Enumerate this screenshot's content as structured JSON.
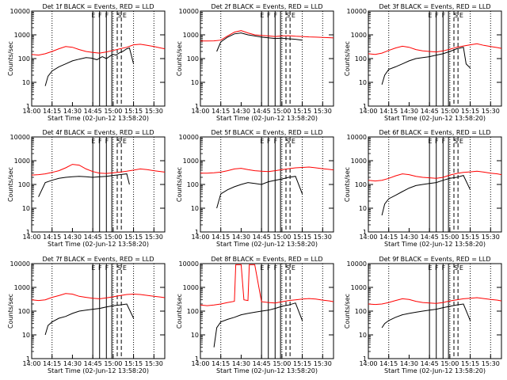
{
  "figure": {
    "panels": [
      {
        "title": "Det 1f BLACK = Events, RED = LLD"
      },
      {
        "title": "Det 2f BLACK = Events, RED = LLD"
      },
      {
        "title": "Det 3f BLACK = Events, RED = LLD"
      },
      {
        "title": "Det 4f BLACK = Events, RED = LLD"
      },
      {
        "title": "Det 5f BLACK = Events, RED = LLD"
      },
      {
        "title": "Det 6f BLACK = Events, RED = LLD"
      },
      {
        "title": "Det 7f BLACK = Events, RED = LLD"
      },
      {
        "title": "Det 8f BLACK = Events, RED = LLD"
      },
      {
        "title": "Det 9f BLACK = Events, RED = LLD"
      }
    ],
    "xlabel": "Start Time (02-Jun-12 13:58:20)",
    "ylabel": "Counts/sec",
    "xtick_labels": [
      "14:00",
      "14:15",
      "14:30",
      "14:45",
      "15:00",
      "15:15",
      "15:30"
    ],
    "ytick_labels": [
      "1",
      "10",
      "100",
      "1000",
      "10000"
    ],
    "marker_labels": [
      "E",
      "F",
      "F",
      "S",
      "E"
    ],
    "colors": {
      "events": "#000000",
      "lld": "#ff0000",
      "axes": "#000000",
      "background": "#ffffff"
    }
  },
  "chart_data": [
    {
      "type": "line",
      "title": "Det 1f BLACK = Events, RED = LLD",
      "xlabel": "Start Time (02-Jun-12 13:58:20)",
      "ylabel": "Counts/sec",
      "yscale": "log",
      "xlim": [
        "14:00",
        "15:38"
      ],
      "ylim": [
        1,
        10000
      ],
      "series": [
        {
          "name": "BLACK = Events",
          "color": "#000000",
          "x": [
            "14:10",
            "14:12",
            "14:15",
            "14:20",
            "14:25",
            "14:30",
            "14:35",
            "14:40",
            "14:44",
            "14:48",
            "14:52",
            "14:55",
            "14:58",
            "15:00",
            "15:02",
            "15:05",
            "15:07",
            "15:10",
            "15:12",
            "15:15"
          ],
          "y": [
            7,
            18,
            30,
            45,
            60,
            80,
            95,
            110,
            105,
            90,
            120,
            100,
            130,
            150,
            140,
            180,
            200,
            260,
            280,
            60
          ]
        },
        {
          "name": "RED = LLD",
          "color": "#ff0000",
          "x": [
            "14:00",
            "14:05",
            "14:10",
            "14:15",
            "14:20",
            "14:25",
            "14:30",
            "14:35",
            "14:40",
            "14:45",
            "14:50",
            "14:55",
            "15:00",
            "15:05",
            "15:10",
            "15:15",
            "15:20",
            "15:25",
            "15:30",
            "15:35",
            "15:38"
          ],
          "y": [
            150,
            140,
            160,
            200,
            260,
            320,
            300,
            240,
            200,
            180,
            170,
            190,
            220,
            260,
            300,
            380,
            400,
            360,
            320,
            280,
            260
          ]
        }
      ]
    },
    {
      "type": "line",
      "title": "Det 2f BLACK = Events, RED = LLD",
      "xlabel": "Start Time (02-Jun-12 13:58:20)",
      "ylabel": "Counts/sec",
      "yscale": "log",
      "xlim": [
        "14:00",
        "15:38"
      ],
      "ylim": [
        1,
        10000
      ],
      "series": [
        {
          "name": "BLACK = Events",
          "color": "#000000",
          "x": [
            "14:12",
            "14:15",
            "14:20",
            "14:25",
            "14:30",
            "14:35",
            "14:40",
            "14:45",
            "14:50",
            "14:55",
            "15:00",
            "15:05",
            "15:10",
            "15:15"
          ],
          "y": [
            200,
            500,
            800,
            1100,
            1200,
            1000,
            900,
            800,
            750,
            700,
            720,
            680,
            650,
            600
          ]
        },
        {
          "name": "RED = LLD",
          "color": "#ff0000",
          "x": [
            "14:00",
            "14:05",
            "14:10",
            "14:15",
            "14:20",
            "14:25",
            "14:30",
            "14:35",
            "14:40",
            "14:45",
            "14:50",
            "14:55",
            "15:00",
            "15:05",
            "15:10",
            "15:15",
            "15:20",
            "15:25",
            "15:30",
            "15:35",
            "15:38"
          ],
          "y": [
            550,
            550,
            560,
            600,
            900,
            1300,
            1500,
            1200,
            1000,
            950,
            900,
            850,
            900,
            920,
            880,
            850,
            820,
            800,
            780,
            760,
            740
          ]
        }
      ]
    },
    {
      "type": "line",
      "title": "Det 3f BLACK = Events, RED = LLD",
      "xlabel": "Start Time (02-Jun-12 13:58:20)",
      "ylabel": "Counts/sec",
      "yscale": "log",
      "xlim": [
        "14:00",
        "15:38"
      ],
      "ylim": [
        1,
        10000
      ],
      "series": [
        {
          "name": "BLACK = Events",
          "color": "#000000",
          "x": [
            "14:10",
            "14:12",
            "14:15",
            "14:20",
            "14:25",
            "14:30",
            "14:35",
            "14:40",
            "14:45",
            "14:50",
            "14:55",
            "15:00",
            "15:05",
            "15:10",
            "15:12",
            "15:15"
          ],
          "y": [
            8,
            20,
            35,
            45,
            60,
            80,
            100,
            110,
            120,
            140,
            160,
            200,
            260,
            300,
            60,
            40
          ]
        },
        {
          "name": "RED = LLD",
          "color": "#ff0000",
          "x": [
            "14:00",
            "14:05",
            "14:10",
            "14:15",
            "14:20",
            "14:25",
            "14:30",
            "14:35",
            "14:40",
            "14:45",
            "14:50",
            "14:55",
            "15:00",
            "15:05",
            "15:10",
            "15:15",
            "15:20",
            "15:25",
            "15:30",
            "15:35",
            "15:38"
          ],
          "y": [
            160,
            150,
            170,
            220,
            280,
            330,
            300,
            240,
            210,
            200,
            190,
            210,
            250,
            300,
            340,
            380,
            420,
            360,
            320,
            290,
            270
          ]
        }
      ]
    },
    {
      "type": "line",
      "title": "Det 4f BLACK = Events, RED = LLD",
      "xlabel": "Start Time (02-Jun-12 13:58:20)",
      "ylabel": "Counts/sec",
      "yscale": "log",
      "xlim": [
        "14:00",
        "15:38"
      ],
      "ylim": [
        1,
        10000
      ],
      "series": [
        {
          "name": "BLACK = Events",
          "color": "#000000",
          "x": [
            "14:05",
            "14:10",
            "14:15",
            "14:20",
            "14:25",
            "14:30",
            "14:35",
            "14:40",
            "14:45",
            "14:50",
            "14:55",
            "15:00",
            "15:05",
            "15:10",
            "15:12"
          ],
          "y": [
            30,
            120,
            150,
            180,
            200,
            210,
            220,
            210,
            200,
            210,
            220,
            240,
            260,
            280,
            100
          ]
        },
        {
          "name": "RED = LLD",
          "color": "#ff0000",
          "x": [
            "14:00",
            "14:05",
            "14:10",
            "14:15",
            "14:20",
            "14:25",
            "14:30",
            "14:35",
            "14:40",
            "14:45",
            "14:50",
            "14:55",
            "15:00",
            "15:05",
            "15:10",
            "15:15",
            "15:20",
            "15:25",
            "15:30",
            "15:35",
            "15:38"
          ],
          "y": [
            250,
            260,
            280,
            320,
            380,
            500,
            700,
            650,
            450,
            350,
            300,
            290,
            310,
            330,
            360,
            400,
            450,
            420,
            380,
            350,
            330
          ]
        }
      ]
    },
    {
      "type": "line",
      "title": "Det 5f BLACK = Events, RED = LLD",
      "xlabel": "Start Time (02-Jun-12 13:58:20)",
      "ylabel": "Counts/sec",
      "yscale": "log",
      "xlim": [
        "14:00",
        "15:38"
      ],
      "ylim": [
        1,
        10000
      ],
      "series": [
        {
          "name": "BLACK = Events",
          "color": "#000000",
          "x": [
            "14:12",
            "14:15",
            "14:20",
            "14:25",
            "14:30",
            "14:35",
            "14:40",
            "14:45",
            "14:50",
            "14:55",
            "15:00",
            "15:05",
            "15:10",
            "15:15"
          ],
          "y": [
            10,
            40,
            60,
            80,
            100,
            120,
            110,
            100,
            130,
            150,
            170,
            200,
            220,
            40
          ]
        },
        {
          "name": "RED = LLD",
          "color": "#ff0000",
          "x": [
            "14:00",
            "14:05",
            "14:10",
            "14:15",
            "14:20",
            "14:25",
            "14:30",
            "14:35",
            "14:40",
            "14:45",
            "14:50",
            "14:55",
            "15:00",
            "15:05",
            "15:10",
            "15:15",
            "15:20",
            "15:25",
            "15:30",
            "15:35",
            "15:38"
          ],
          "y": [
            300,
            300,
            310,
            330,
            380,
            450,
            480,
            420,
            380,
            360,
            350,
            380,
            420,
            460,
            500,
            520,
            540,
            500,
            460,
            430,
            410
          ]
        }
      ]
    },
    {
      "type": "line",
      "title": "Det 6f BLACK = Events, RED = LLD",
      "xlabel": "Start Time (02-Jun-12 13:58:20)",
      "ylabel": "Counts/sec",
      "yscale": "log",
      "xlim": [
        "14:00",
        "15:38"
      ],
      "ylim": [
        1,
        10000
      ],
      "series": [
        {
          "name": "BLACK = Events",
          "color": "#000000",
          "x": [
            "14:10",
            "14:12",
            "14:15",
            "14:20",
            "14:25",
            "14:30",
            "14:35",
            "14:40",
            "14:45",
            "14:50",
            "14:55",
            "15:00",
            "15:05",
            "15:10",
            "15:15"
          ],
          "y": [
            5,
            15,
            25,
            35,
            50,
            70,
            90,
            100,
            110,
            120,
            150,
            180,
            200,
            240,
            60
          ]
        },
        {
          "name": "RED = LLD",
          "color": "#ff0000",
          "x": [
            "14:00",
            "14:05",
            "14:10",
            "14:15",
            "14:20",
            "14:25",
            "14:30",
            "14:35",
            "14:40",
            "14:45",
            "14:50",
            "14:55",
            "15:00",
            "15:05",
            "15:10",
            "15:15",
            "15:20",
            "15:25",
            "15:30",
            "15:35",
            "15:38"
          ],
          "y": [
            150,
            140,
            150,
            180,
            230,
            280,
            260,
            220,
            200,
            190,
            180,
            200,
            250,
            290,
            320,
            340,
            360,
            330,
            300,
            280,
            260
          ]
        }
      ]
    },
    {
      "type": "line",
      "title": "Det 7f BLACK = Events, RED = LLD",
      "xlabel": "Start Time (02-Jun-12 13:58:20)",
      "ylabel": "Counts/sec",
      "yscale": "log",
      "xlim": [
        "14:00",
        "15:38"
      ],
      "ylim": [
        1,
        10000
      ],
      "series": [
        {
          "name": "BLACK = Events",
          "color": "#000000",
          "x": [
            "14:10",
            "14:12",
            "14:15",
            "14:20",
            "14:25",
            "14:30",
            "14:35",
            "14:40",
            "14:45",
            "14:50",
            "14:55",
            "15:00",
            "15:05",
            "15:10",
            "15:15"
          ],
          "y": [
            10,
            25,
            35,
            50,
            60,
            80,
            100,
            110,
            120,
            130,
            150,
            170,
            180,
            200,
            50
          ]
        },
        {
          "name": "RED = LLD",
          "color": "#ff0000",
          "x": [
            "14:00",
            "14:05",
            "14:10",
            "14:15",
            "14:20",
            "14:25",
            "14:30",
            "14:35",
            "14:40",
            "14:45",
            "14:50",
            "14:55",
            "15:00",
            "15:05",
            "15:10",
            "15:15",
            "15:20",
            "15:25",
            "15:30",
            "15:35",
            "15:38"
          ],
          "y": [
            300,
            280,
            300,
            380,
            450,
            550,
            520,
            420,
            380,
            350,
            330,
            360,
            400,
            450,
            500,
            520,
            500,
            460,
            420,
            390,
            370
          ]
        }
      ]
    },
    {
      "type": "line",
      "title": "Det 8f BLACK = Events, RED = LLD",
      "xlabel": "Start Time (02-Jun-12 13:58:20)",
      "ylabel": "Counts/sec",
      "yscale": "log",
      "xlim": [
        "14:00",
        "15:38"
      ],
      "ylim": [
        1,
        10000
      ],
      "series": [
        {
          "name": "BLACK = Events",
          "color": "#000000",
          "x": [
            "14:10",
            "14:12",
            "14:15",
            "14:20",
            "14:25",
            "14:30",
            "14:35",
            "14:40",
            "14:45",
            "14:50",
            "14:55",
            "15:00",
            "15:05",
            "15:10",
            "15:15"
          ],
          "y": [
            3,
            20,
            35,
            45,
            55,
            70,
            80,
            90,
            100,
            110,
            130,
            160,
            180,
            220,
            40
          ]
        },
        {
          "name": "RED = LLD",
          "color": "#ff0000",
          "x": [
            "14:00",
            "14:05",
            "14:10",
            "14:15",
            "14:20",
            "14:25",
            "14:26",
            "14:30",
            "14:32",
            "14:35",
            "14:36",
            "14:40",
            "14:45",
            "14:50",
            "14:55",
            "15:00",
            "15:05",
            "15:10",
            "15:15",
            "15:20",
            "15:25",
            "15:30",
            "15:35",
            "15:38"
          ],
          "y": [
            180,
            170,
            180,
            200,
            230,
            260,
            9000,
            9000,
            300,
            280,
            9000,
            9000,
            250,
            230,
            220,
            250,
            280,
            300,
            320,
            340,
            320,
            290,
            270,
            250
          ]
        }
      ]
    },
    {
      "type": "line",
      "title": "Det 9f BLACK = Events, RED = LLD",
      "xlabel": "Start Time (02-Jun-12 13:58:20)",
      "ylabel": "Counts/sec",
      "yscale": "log",
      "xlim": [
        "14:00",
        "15:38"
      ],
      "ylim": [
        1,
        10000
      ],
      "series": [
        {
          "name": "BLACK = Events",
          "color": "#000000",
          "x": [
            "14:10",
            "14:12",
            "14:15",
            "14:20",
            "14:25",
            "14:30",
            "14:35",
            "14:40",
            "14:45",
            "14:50",
            "14:55",
            "15:00",
            "15:05",
            "15:10",
            "15:15"
          ],
          "y": [
            20,
            30,
            40,
            55,
            70,
            80,
            90,
            100,
            110,
            120,
            140,
            160,
            180,
            200,
            40
          ]
        },
        {
          "name": "RED = LLD",
          "color": "#ff0000",
          "x": [
            "14:00",
            "14:05",
            "14:10",
            "14:15",
            "14:20",
            "14:25",
            "14:30",
            "14:35",
            "14:40",
            "14:45",
            "14:50",
            "14:55",
            "15:00",
            "15:05",
            "15:10",
            "15:15",
            "15:20",
            "15:25",
            "15:30",
            "15:35",
            "15:38"
          ],
          "y": [
            200,
            190,
            200,
            230,
            280,
            330,
            310,
            260,
            230,
            220,
            210,
            230,
            270,
            300,
            330,
            350,
            370,
            340,
            310,
            290,
            270
          ]
        }
      ]
    }
  ]
}
